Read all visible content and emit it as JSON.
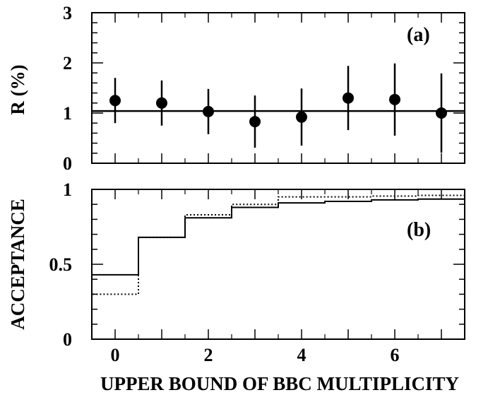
{
  "chart_data": [
    {
      "id": "a",
      "type": "scatter",
      "panel_label": "(a)",
      "ylabel": "R (%)",
      "xlabel": "",
      "xlim": [
        -0.5,
        7.5
      ],
      "ylim": [
        0,
        3
      ],
      "yticks": [
        0,
        1,
        2,
        3
      ],
      "ytick_labels": [
        "0",
        "1",
        "2",
        "3"
      ],
      "x": [
        0,
        1,
        2,
        3,
        4,
        5,
        6,
        7
      ],
      "y": [
        1.25,
        1.2,
        1.03,
        0.83,
        0.92,
        1.3,
        1.27,
        1.0
      ],
      "yerr": [
        0.45,
        0.45,
        0.45,
        0.52,
        0.57,
        0.64,
        0.72,
        0.79
      ],
      "fit_line": 1.04,
      "grid": false
    },
    {
      "id": "b",
      "type": "line",
      "panel_label": "(b)",
      "ylabel": "ACCEPTANCE",
      "xlabel": "UPPER BOUND OF BBC MULTIPLICITY",
      "xlim": [
        -0.5,
        7.5
      ],
      "ylim": [
        0,
        1
      ],
      "yticks": [
        0,
        0.5,
        1
      ],
      "ytick_labels": [
        "0",
        "0.5",
        "1"
      ],
      "xticks": [
        0,
        2,
        4,
        6
      ],
      "xtick_labels": [
        "0",
        "2",
        "4",
        "6"
      ],
      "x": [
        0,
        1,
        2,
        3,
        4,
        5,
        6,
        7
      ],
      "series": [
        {
          "style": "solid",
          "values": [
            0.43,
            0.68,
            0.81,
            0.88,
            0.91,
            0.92,
            0.93,
            0.935
          ]
        },
        {
          "style": "dotted",
          "values": [
            0.3,
            0.68,
            0.83,
            0.9,
            0.95,
            0.95,
            0.955,
            0.96
          ]
        }
      ],
      "grid": false
    }
  ]
}
